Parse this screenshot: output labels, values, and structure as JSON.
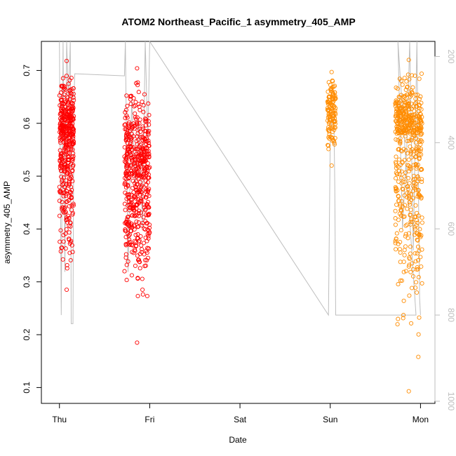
{
  "chart_data": {
    "type": "scatter",
    "title": "ATOM2 Northeast_Pacific_1 asymmetry_405_AMP",
    "xlabel": "Date",
    "ylabel": "asymmetry_405_AMP",
    "x_ticks": [
      "Thu",
      "Fri",
      "Sat",
      "Sun",
      "Mon"
    ],
    "x_range": [
      -0.2,
      4.16
    ],
    "ylim": [
      0.07,
      0.755
    ],
    "y_ticks": [
      0.1,
      0.2,
      0.3,
      0.4,
      0.5,
      0.6,
      0.7
    ],
    "y2_range": [
      1005,
      165
    ],
    "y2_reversed": true,
    "y2_ticks": [
      200,
      400,
      600,
      800,
      1000
    ],
    "colors": {
      "series_red": "#ff0000",
      "series_orange": "#ff8c00",
      "depth_line": "#bebebe",
      "axis": "#000000"
    },
    "series": [
      {
        "color": "#ff0000",
        "clusters": [
          {
            "x_start": 0.0,
            "x_end": 0.16,
            "y_min": 0.285,
            "y_max": 0.718,
            "y_mean": 0.575,
            "count": 420
          },
          {
            "x_start": 0.72,
            "x_end": 1.0,
            "y_min": 0.185,
            "y_max": 0.704,
            "y_mean": 0.5,
            "count": 520
          }
        ]
      },
      {
        "color": "#ff8c00",
        "clusters": [
          {
            "x_start": 2.97,
            "x_end": 3.06,
            "y_min": 0.52,
            "y_max": 0.697,
            "y_mean": 0.63,
            "count": 120
          },
          {
            "x_start": 3.72,
            "x_end": 4.02,
            "y_min": 0.093,
            "y_max": 0.72,
            "y_mean": 0.58,
            "count": 520
          }
        ]
      }
    ],
    "depth_series": {
      "color": "#bebebe",
      "points": [
        [
          0.0,
          165
        ],
        [
          0.02,
          800
        ],
        [
          0.04,
          165
        ],
        [
          0.06,
          700
        ],
        [
          0.08,
          165
        ],
        [
          0.1,
          300
        ],
        [
          0.12,
          165
        ],
        [
          0.13,
          820
        ],
        [
          0.15,
          820
        ],
        [
          0.16,
          300
        ],
        [
          0.17,
          240
        ],
        [
          0.72,
          245
        ],
        [
          0.73,
          165
        ],
        [
          0.76,
          700
        ],
        [
          0.8,
          300
        ],
        [
          0.84,
          500
        ],
        [
          0.88,
          350
        ],
        [
          0.92,
          600
        ],
        [
          0.95,
          165
        ],
        [
          0.98,
          400
        ],
        [
          1.0,
          165
        ],
        [
          2.98,
          800
        ],
        [
          3.0,
          400
        ],
        [
          3.02,
          330
        ],
        [
          3.04,
          330
        ],
        [
          3.05,
          500
        ],
        [
          3.06,
          800
        ],
        [
          3.95,
          800
        ],
        [
          3.75,
          165
        ],
        [
          3.8,
          600
        ],
        [
          3.85,
          400
        ],
        [
          3.88,
          165
        ],
        [
          3.92,
          650
        ],
        [
          3.96,
          165
        ],
        [
          3.99,
          760
        ],
        [
          4.0,
          800
        ]
      ]
    }
  }
}
